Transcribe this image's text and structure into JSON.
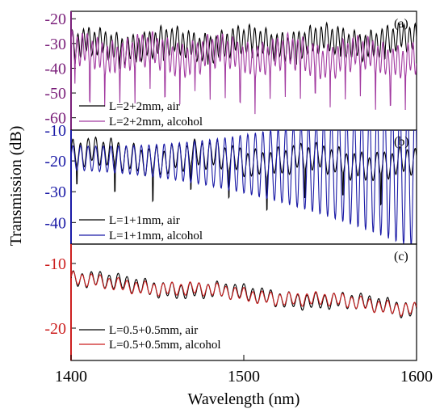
{
  "chart_data": {
    "type": "line",
    "title": "",
    "xlabel": "Wavelength (nm)",
    "ylabel": "Transmission (dB)",
    "x_ticks": [
      "1400",
      "1500",
      "1600"
    ],
    "xlim": [
      1400,
      1600
    ],
    "grid": false,
    "panels": [
      {
        "label": "(a)",
        "ylim": [
          -65,
          -17
        ],
        "y_ticks": [
          "-20",
          "-30",
          "-40",
          "-50",
          "-60"
        ],
        "axis_color": "#7a1f7a",
        "legend_position": "bottom-left",
        "series": [
          {
            "name": "L=2+2mm, air",
            "color": "#000000",
            "x_start": 1400,
            "x_end": 1600,
            "baseline": -31,
            "amp": 5,
            "period": 3.2,
            "dip_depth": 4,
            "dip_every": 8,
            "trend": 2
          },
          {
            "name": "L=2+2mm, alcohol",
            "color": "#a23aa0",
            "x_start": 1400,
            "x_end": 1600,
            "baseline": -34,
            "amp": 6,
            "period": 2.9,
            "dip_depth": 14,
            "dip_every": 3,
            "trend": -2
          }
        ]
      },
      {
        "label": "(b)",
        "ylim": [
          -47,
          -10
        ],
        "y_ticks": [
          "-10",
          "-20",
          "-30",
          "-40"
        ],
        "axis_color": "#1a1aa6",
        "legend_position": "bottom-left",
        "series": [
          {
            "name": "L=1+1mm, air",
            "color": "#000000",
            "x_start": 1400,
            "x_end": 1600,
            "baseline": -18,
            "amp": 4,
            "period": 4.4,
            "dip_depth": 10,
            "dip_every": 5,
            "trend": -3
          },
          {
            "name": "L=1+1mm, alcohol",
            "color": "#1a1aa6",
            "x_start": 1400,
            "x_end": 1600,
            "baseline": -19,
            "amp": 4,
            "period": 4.4,
            "dip_depth": 0,
            "dip_every": 0,
            "trend": -20
          }
        ]
      },
      {
        "label": "(c)",
        "ylim": [
          -25,
          -7
        ],
        "y_ticks": [
          "-10",
          "-20"
        ],
        "axis_color": "#cc1f1f",
        "legend_position": "bottom-left",
        "series": [
          {
            "name": "L=0.5+0.5mm, air",
            "color": "#000000",
            "x_start": 1400,
            "x_end": 1600,
            "baseline": -12.5,
            "amp": 1.1,
            "period": 5.2,
            "dip_depth": 0,
            "dip_every": 0,
            "trend": -4.5
          },
          {
            "name": "L=0.5+0.5mm, alcohol",
            "color": "#cc1f1f",
            "x_start": 1400,
            "x_end": 1600,
            "baseline": -12.6,
            "amp": 0.9,
            "period": 5.2,
            "dip_depth": 0,
            "dip_every": 0,
            "trend": -4.3
          }
        ]
      }
    ]
  }
}
